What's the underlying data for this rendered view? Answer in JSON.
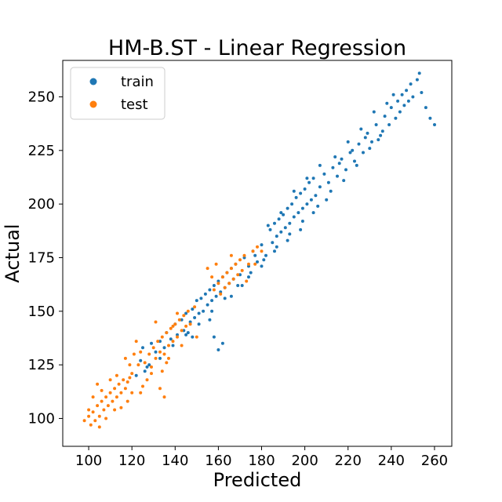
{
  "chart_data": {
    "type": "scatter",
    "title": "HM-B.ST - Linear Regression",
    "xlabel": "Predicted",
    "ylabel": "Actual",
    "xlim": [
      88,
      268
    ],
    "ylim": [
      87,
      267
    ],
    "xticks": [
      100,
      120,
      140,
      160,
      180,
      200,
      220,
      240,
      260
    ],
    "yticks": [
      100,
      125,
      150,
      175,
      200,
      225,
      250
    ],
    "legend_position": "top-left",
    "grid": false,
    "series": [
      {
        "name": "train",
        "color": "#1f77b4",
        "points": [
          [
            122,
            120
          ],
          [
            124,
            127
          ],
          [
            126,
            122
          ],
          [
            125,
            133
          ],
          [
            128,
            125
          ],
          [
            129,
            135
          ],
          [
            131,
            131
          ],
          [
            133,
            136
          ],
          [
            135,
            133
          ],
          [
            136,
            140
          ],
          [
            138,
            137
          ],
          [
            140,
            144
          ],
          [
            141,
            139
          ],
          [
            143,
            146
          ],
          [
            144,
            141
          ],
          [
            145,
            149
          ],
          [
            147,
            145
          ],
          [
            148,
            151
          ],
          [
            149,
            147
          ],
          [
            150,
            155
          ],
          [
            151,
            149
          ],
          [
            152,
            156
          ],
          [
            153,
            150
          ],
          [
            154,
            158
          ],
          [
            155,
            153
          ],
          [
            156,
            160
          ],
          [
            157,
            155
          ],
          [
            158,
            162
          ],
          [
            159,
            157
          ],
          [
            160,
            164
          ],
          [
            161,
            159
          ],
          [
            162,
            166
          ],
          [
            163,
            161
          ],
          [
            164,
            168
          ],
          [
            165,
            163
          ],
          [
            166,
            170
          ],
          [
            167,
            165
          ],
          [
            168,
            172
          ],
          [
            170,
            167
          ],
          [
            172,
            175
          ],
          [
            174,
            171
          ],
          [
            176,
            178
          ],
          [
            178,
            173
          ],
          [
            180,
            181
          ],
          [
            182,
            176
          ],
          [
            184,
            188
          ],
          [
            185,
            182
          ],
          [
            186,
            191
          ],
          [
            187,
            185
          ],
          [
            188,
            193
          ],
          [
            189,
            187
          ],
          [
            190,
            195
          ],
          [
            191,
            189
          ],
          [
            192,
            198
          ],
          [
            193,
            191
          ],
          [
            194,
            200
          ],
          [
            195,
            194
          ],
          [
            196,
            203
          ],
          [
            197,
            196
          ],
          [
            198,
            205
          ],
          [
            199,
            198
          ],
          [
            200,
            207
          ],
          [
            201,
            200
          ],
          [
            202,
            210
          ],
          [
            203,
            202
          ],
          [
            204,
            212
          ],
          [
            205,
            204
          ],
          [
            207,
            208
          ],
          [
            209,
            214
          ],
          [
            211,
            210
          ],
          [
            213,
            217
          ],
          [
            215,
            213
          ],
          [
            217,
            221
          ],
          [
            219,
            216
          ],
          [
            221,
            224
          ],
          [
            223,
            220
          ],
          [
            225,
            228
          ],
          [
            227,
            224
          ],
          [
            229,
            233
          ],
          [
            231,
            229
          ],
          [
            233,
            237
          ],
          [
            235,
            232
          ],
          [
            237,
            241
          ],
          [
            239,
            237
          ],
          [
            240,
            245
          ],
          [
            242,
            240
          ],
          [
            243,
            248
          ],
          [
            244,
            243
          ],
          [
            245,
            251
          ],
          [
            246,
            246
          ],
          [
            247,
            253
          ],
          [
            248,
            248
          ],
          [
            249,
            256
          ],
          [
            250,
            250
          ],
          [
            252,
            258
          ],
          [
            254,
            252
          ],
          [
            256,
            245
          ],
          [
            258,
            240
          ],
          [
            260,
            237
          ],
          [
            253,
            261
          ],
          [
            236,
            234
          ],
          [
            230,
            226
          ],
          [
            224,
            218
          ],
          [
            218,
            211
          ],
          [
            212,
            206
          ],
          [
            206,
            199
          ],
          [
            199,
            192
          ],
          [
            193,
            186
          ],
          [
            187,
            180
          ],
          [
            181,
            174
          ],
          [
            175,
            168
          ],
          [
            169,
            162
          ],
          [
            163,
            156
          ],
          [
            157,
            150
          ],
          [
            151,
            144
          ],
          [
            145,
            139
          ],
          [
            139,
            134
          ],
          [
            133,
            128
          ],
          [
            127,
            124
          ],
          [
            146,
            140
          ],
          [
            160,
            132
          ],
          [
            162,
            135
          ],
          [
            158,
            138
          ],
          [
            156,
            146
          ],
          [
            148,
            138
          ],
          [
            166,
            157
          ],
          [
            171,
            162
          ],
          [
            177,
            176
          ],
          [
            183,
            190
          ],
          [
            189,
            196
          ],
          [
            195,
            206
          ],
          [
            201,
            212
          ],
          [
            207,
            218
          ],
          [
            214,
            222
          ],
          [
            220,
            229
          ],
          [
            226,
            235
          ],
          [
            232,
            243
          ],
          [
            238,
            247
          ],
          [
            241,
            251
          ],
          [
            234,
            230
          ],
          [
            228,
            231
          ],
          [
            222,
            225
          ],
          [
            216,
            219
          ],
          [
            210,
            202
          ],
          [
            204,
            196
          ],
          [
            198,
            188
          ],
          [
            192,
            183
          ],
          [
            186,
            178
          ],
          [
            180,
            171
          ],
          [
            174,
            166
          ]
        ]
      },
      {
        "name": "test",
        "color": "#ff7f0e",
        "points": [
          [
            98,
            99
          ],
          [
            100,
            101
          ],
          [
            101,
            97
          ],
          [
            102,
            103
          ],
          [
            103,
            99
          ],
          [
            104,
            106
          ],
          [
            105,
            101
          ],
          [
            106,
            108
          ],
          [
            107,
            104
          ],
          [
            108,
            110
          ],
          [
            109,
            106
          ],
          [
            110,
            112
          ],
          [
            111,
            108
          ],
          [
            112,
            114
          ],
          [
            113,
            110
          ],
          [
            114,
            116
          ],
          [
            115,
            112
          ],
          [
            116,
            118
          ],
          [
            117,
            114
          ],
          [
            118,
            117
          ],
          [
            119,
            119
          ],
          [
            120,
            121
          ],
          [
            102,
            110
          ],
          [
            104,
            116
          ],
          [
            106,
            113
          ],
          [
            100,
            104
          ],
          [
            105,
            96
          ],
          [
            108,
            100
          ],
          [
            112,
            104
          ],
          [
            115,
            105
          ],
          [
            118,
            108
          ],
          [
            120,
            112
          ],
          [
            121,
            130
          ],
          [
            122,
            136
          ],
          [
            125,
            115
          ],
          [
            126,
            126
          ],
          [
            128,
            130
          ],
          [
            129,
            124
          ],
          [
            130,
            133
          ],
          [
            131,
            128
          ],
          [
            132,
            136
          ],
          [
            133,
            131
          ],
          [
            134,
            138
          ],
          [
            135,
            130
          ],
          [
            136,
            140
          ],
          [
            137,
            134
          ],
          [
            138,
            142
          ],
          [
            139,
            136
          ],
          [
            140,
            144
          ],
          [
            141,
            138
          ],
          [
            142,
            146
          ],
          [
            143,
            141
          ],
          [
            144,
            148
          ],
          [
            145,
            143
          ],
          [
            146,
            150
          ],
          [
            131,
            145
          ],
          [
            129,
            121
          ],
          [
            127,
            118
          ],
          [
            133,
            114
          ],
          [
            135,
            110
          ],
          [
            137,
            128
          ],
          [
            143,
            134
          ],
          [
            147,
            144
          ],
          [
            149,
            152
          ],
          [
            150,
            138
          ],
          [
            158,
            160
          ],
          [
            160,
            163
          ],
          [
            161,
            158
          ],
          [
            162,
            166
          ],
          [
            163,
            161
          ],
          [
            164,
            168
          ],
          [
            165,
            163
          ],
          [
            166,
            170
          ],
          [
            167,
            165
          ],
          [
            168,
            172
          ],
          [
            169,
            167
          ],
          [
            170,
            174
          ],
          [
            171,
            169
          ],
          [
            172,
            176
          ],
          [
            174,
            172
          ],
          [
            176,
            178
          ],
          [
            178,
            180
          ],
          [
            180,
            178
          ],
          [
            157,
            166
          ],
          [
            155,
            170
          ],
          [
            159,
            172
          ],
          [
            166,
            176
          ],
          [
            173,
            164
          ],
          [
            177,
            172
          ],
          [
            124,
            112
          ],
          [
            117,
            128
          ],
          [
            113,
            120
          ],
          [
            119,
            125
          ],
          [
            110,
            118
          ],
          [
            139,
            143
          ],
          [
            141,
            149
          ],
          [
            136,
            126
          ],
          [
            134,
            122
          ],
          [
            124,
            131
          ],
          [
            123,
            125
          ]
        ]
      }
    ]
  }
}
